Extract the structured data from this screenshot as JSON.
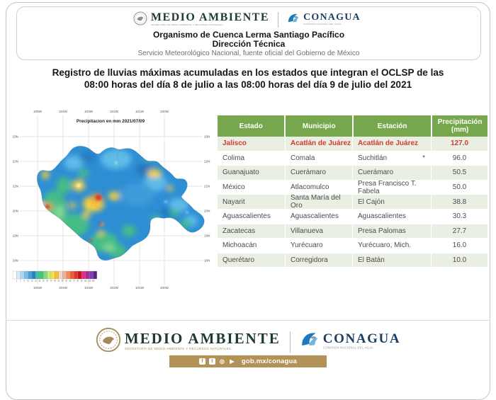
{
  "header": {
    "medio_ambiente": {
      "title": "MEDIO AMBIENTE",
      "subtitle": "SECRETARÍA DE MEDIO AMBIENTE Y RECURSOS NATURALES"
    },
    "conagua": {
      "title": "CONAGUA",
      "subtitle": "COMISIÓN NACIONAL DEL AGUA"
    },
    "org": "Organismo de Cuenca Lerma Santiago Pacífico",
    "dir": "Dirección Técnica",
    "smn": "Servicio Meteorológico Nacional, fuente oficial del Gobierno de México"
  },
  "title": {
    "line1": "Registro de lluvias máximas acumuladas en los estados que integran el OCLSP de las",
    "line2": "08:00 horas del día 8 de julio a las 08:00 horas del día 9 de julio del 2021"
  },
  "map": {
    "title": "Precipitacion en mm  2021/07/09",
    "lon_labels": [
      "105W",
      "104W",
      "103W",
      "102W",
      "101W",
      "100W"
    ],
    "lat_labels": [
      "23N",
      "22N",
      "21N",
      "20N",
      "19N",
      "18N"
    ],
    "colorbar_colors": [
      "#ffffff",
      "#d8ecf8",
      "#a8d8f0",
      "#78c0e8",
      "#48a0d8",
      "#2880c8",
      "#40c0a0",
      "#40c878",
      "#88d880",
      "#c8e878",
      "#f8e048",
      "#f8c030",
      "#f0d8c8",
      "#f0b098",
      "#f08858",
      "#e86028",
      "#e83030",
      "#c01818",
      "#e82888",
      "#a82898",
      "#8838b0",
      "#502880"
    ],
    "colorbar_ticks": [
      "1",
      "2",
      "5",
      "10",
      "15",
      "20",
      "25",
      "30",
      "35",
      "40",
      "45",
      "50",
      "55",
      "60",
      "65",
      "70",
      "80",
      "90",
      "100",
      "125",
      "150"
    ]
  },
  "table": {
    "headers": {
      "estado": "Estado",
      "municipio": "Municipio",
      "estacion": "Estación",
      "precip_l1": "Precipitación",
      "precip_l2": "(mm)"
    },
    "rows": [
      {
        "estado": "Jalisco",
        "municipio": "Acatlán de Juárez",
        "estacion": "Acatlán de Juárez",
        "note": "",
        "precip": "127.0"
      },
      {
        "estado": "Colima",
        "municipio": "Comala",
        "estacion": "Suchitlán",
        "note": "*",
        "precip": "96.0"
      },
      {
        "estado": "Guanajuato",
        "municipio": "Cuerámaro",
        "estacion": "Cuerámaro",
        "note": "",
        "precip": "50.5"
      },
      {
        "estado": "México",
        "municipio": "Atlacomulco",
        "estacion": "Presa Francisco T. Fabela",
        "note": "",
        "precip": "50.0"
      },
      {
        "estado": "Nayarit",
        "municipio": "Santa María del Oro",
        "estacion": "El Cajón",
        "note": "",
        "precip": "38.8"
      },
      {
        "estado": "Aguascalientes",
        "municipio": "Aguascalientes",
        "estacion": "Aguascalientes",
        "note": "",
        "precip": "30.3"
      },
      {
        "estado": "Zacatecas",
        "municipio": "Villanueva",
        "estacion": "Presa Palomas",
        "note": "",
        "precip": "27.7"
      },
      {
        "estado": "Michoacán",
        "municipio": "Yurécuaro",
        "estacion": "Yurécuaro, Mich.",
        "note": "",
        "precip": "16.0"
      },
      {
        "estado": "Querétaro",
        "municipio": "Corregidora",
        "estacion": "El Batán",
        "note": "",
        "precip": "10.0"
      }
    ]
  },
  "footer": {
    "medio_ambiente": {
      "title": "MEDIO AMBIENTE",
      "subtitle": "SECRETARÍA DE MEDIO AMBIENTE Y RECURSOS NATURALES"
    },
    "conagua": {
      "title": "CONAGUA",
      "subtitle": "COMISIÓN NACIONAL DEL AGUA"
    },
    "social": {
      "url": "gob.mx/conagua",
      "icons": [
        "facebook-icon",
        "twitter-icon",
        "instagram-icon",
        "youtube-icon"
      ]
    }
  },
  "colors": {
    "table_header_green": "#76a74c",
    "row_alt_green": "#e9efe3",
    "highlight_red": "#d23a30",
    "gold_bar": "#b29257",
    "logo_green": "#1c3a32",
    "logo_navy": "#1d3d63",
    "seal_gold": "#a38b5c"
  }
}
